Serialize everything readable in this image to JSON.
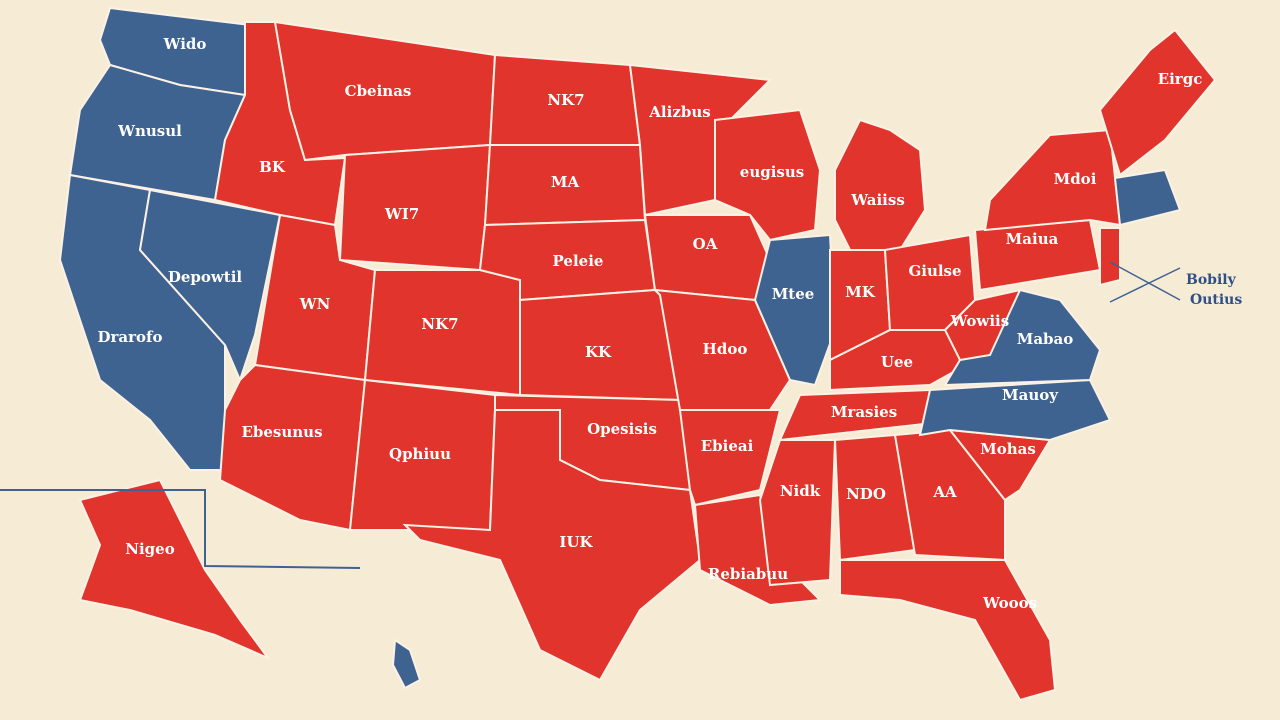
{
  "map": {
    "regions": [
      {
        "label": "Wido",
        "color": "#3f6391"
      },
      {
        "label": "Wnusul",
        "color": "#3f6391"
      },
      {
        "label": "Drarofo",
        "color": "#3f6391"
      },
      {
        "label": "Depowtil",
        "color": "#3f6391"
      },
      {
        "label": "BK",
        "color": "#e0342c"
      },
      {
        "label": "Cbeinas",
        "color": "#e0342c"
      },
      {
        "label": "WI7",
        "color": "#e0342c"
      },
      {
        "label": "WN",
        "color": "#e0342c"
      },
      {
        "label": "NK7",
        "color": "#e0342c"
      },
      {
        "label": "Ebesunus",
        "color": "#e0342c"
      },
      {
        "label": "Qphiuu",
        "color": "#e0342c"
      },
      {
        "label": "NK7",
        "color": "#e0342c"
      },
      {
        "label": "MA",
        "color": "#e0342c"
      },
      {
        "label": "Peleie",
        "color": "#e0342c"
      },
      {
        "label": "KK",
        "color": "#e0342c"
      },
      {
        "label": "Opesisis",
        "color": "#e0342c"
      },
      {
        "label": "IUK",
        "color": "#e0342c"
      },
      {
        "label": "Alizbus",
        "color": "#e0342c"
      },
      {
        "label": "OA",
        "color": "#e0342c"
      },
      {
        "label": "Hdoo",
        "color": "#e0342c"
      },
      {
        "label": "Ebieai",
        "color": "#e0342c"
      },
      {
        "label": "Rebiabuu",
        "color": "#e0342c"
      },
      {
        "label": "eugisus",
        "color": "#e0342c"
      },
      {
        "label": "Mtee",
        "color": "#3f6391"
      },
      {
        "label": "Waiiss",
        "color": "#e0342c"
      },
      {
        "label": "MK",
        "color": "#e0342c"
      },
      {
        "label": "Giulse",
        "color": "#e0342c"
      },
      {
        "label": "Uee",
        "color": "#e0342c"
      },
      {
        "label": "Mrasies",
        "color": "#e0342c"
      },
      {
        "label": "Nidk",
        "color": "#e0342c"
      },
      {
        "label": "NDO",
        "color": "#e0342c"
      },
      {
        "label": "AA",
        "color": "#e0342c"
      },
      {
        "label": "Wooos",
        "color": "#e0342c"
      },
      {
        "label": "Mohas",
        "color": "#e0342c"
      },
      {
        "label": "Mauoy",
        "color": "#3f6391"
      },
      {
        "label": "Mabao",
        "color": "#3f6391"
      },
      {
        "label": "Wowiis",
        "color": "#e0342c"
      },
      {
        "label": "Maiua",
        "color": "#e0342c"
      },
      {
        "label": "Mdoi",
        "color": "#e0342c"
      },
      {
        "label": "Eirgc",
        "color": "#e0342c"
      },
      {
        "color": "#3f6391"
      },
      {
        "color": "#e0342c"
      },
      {
        "label": "Nigeo",
        "color": "#e0342c"
      },
      {
        "color": "#3f6391"
      }
    ],
    "callout": [
      "Bobily",
      "Outius"
    ]
  }
}
